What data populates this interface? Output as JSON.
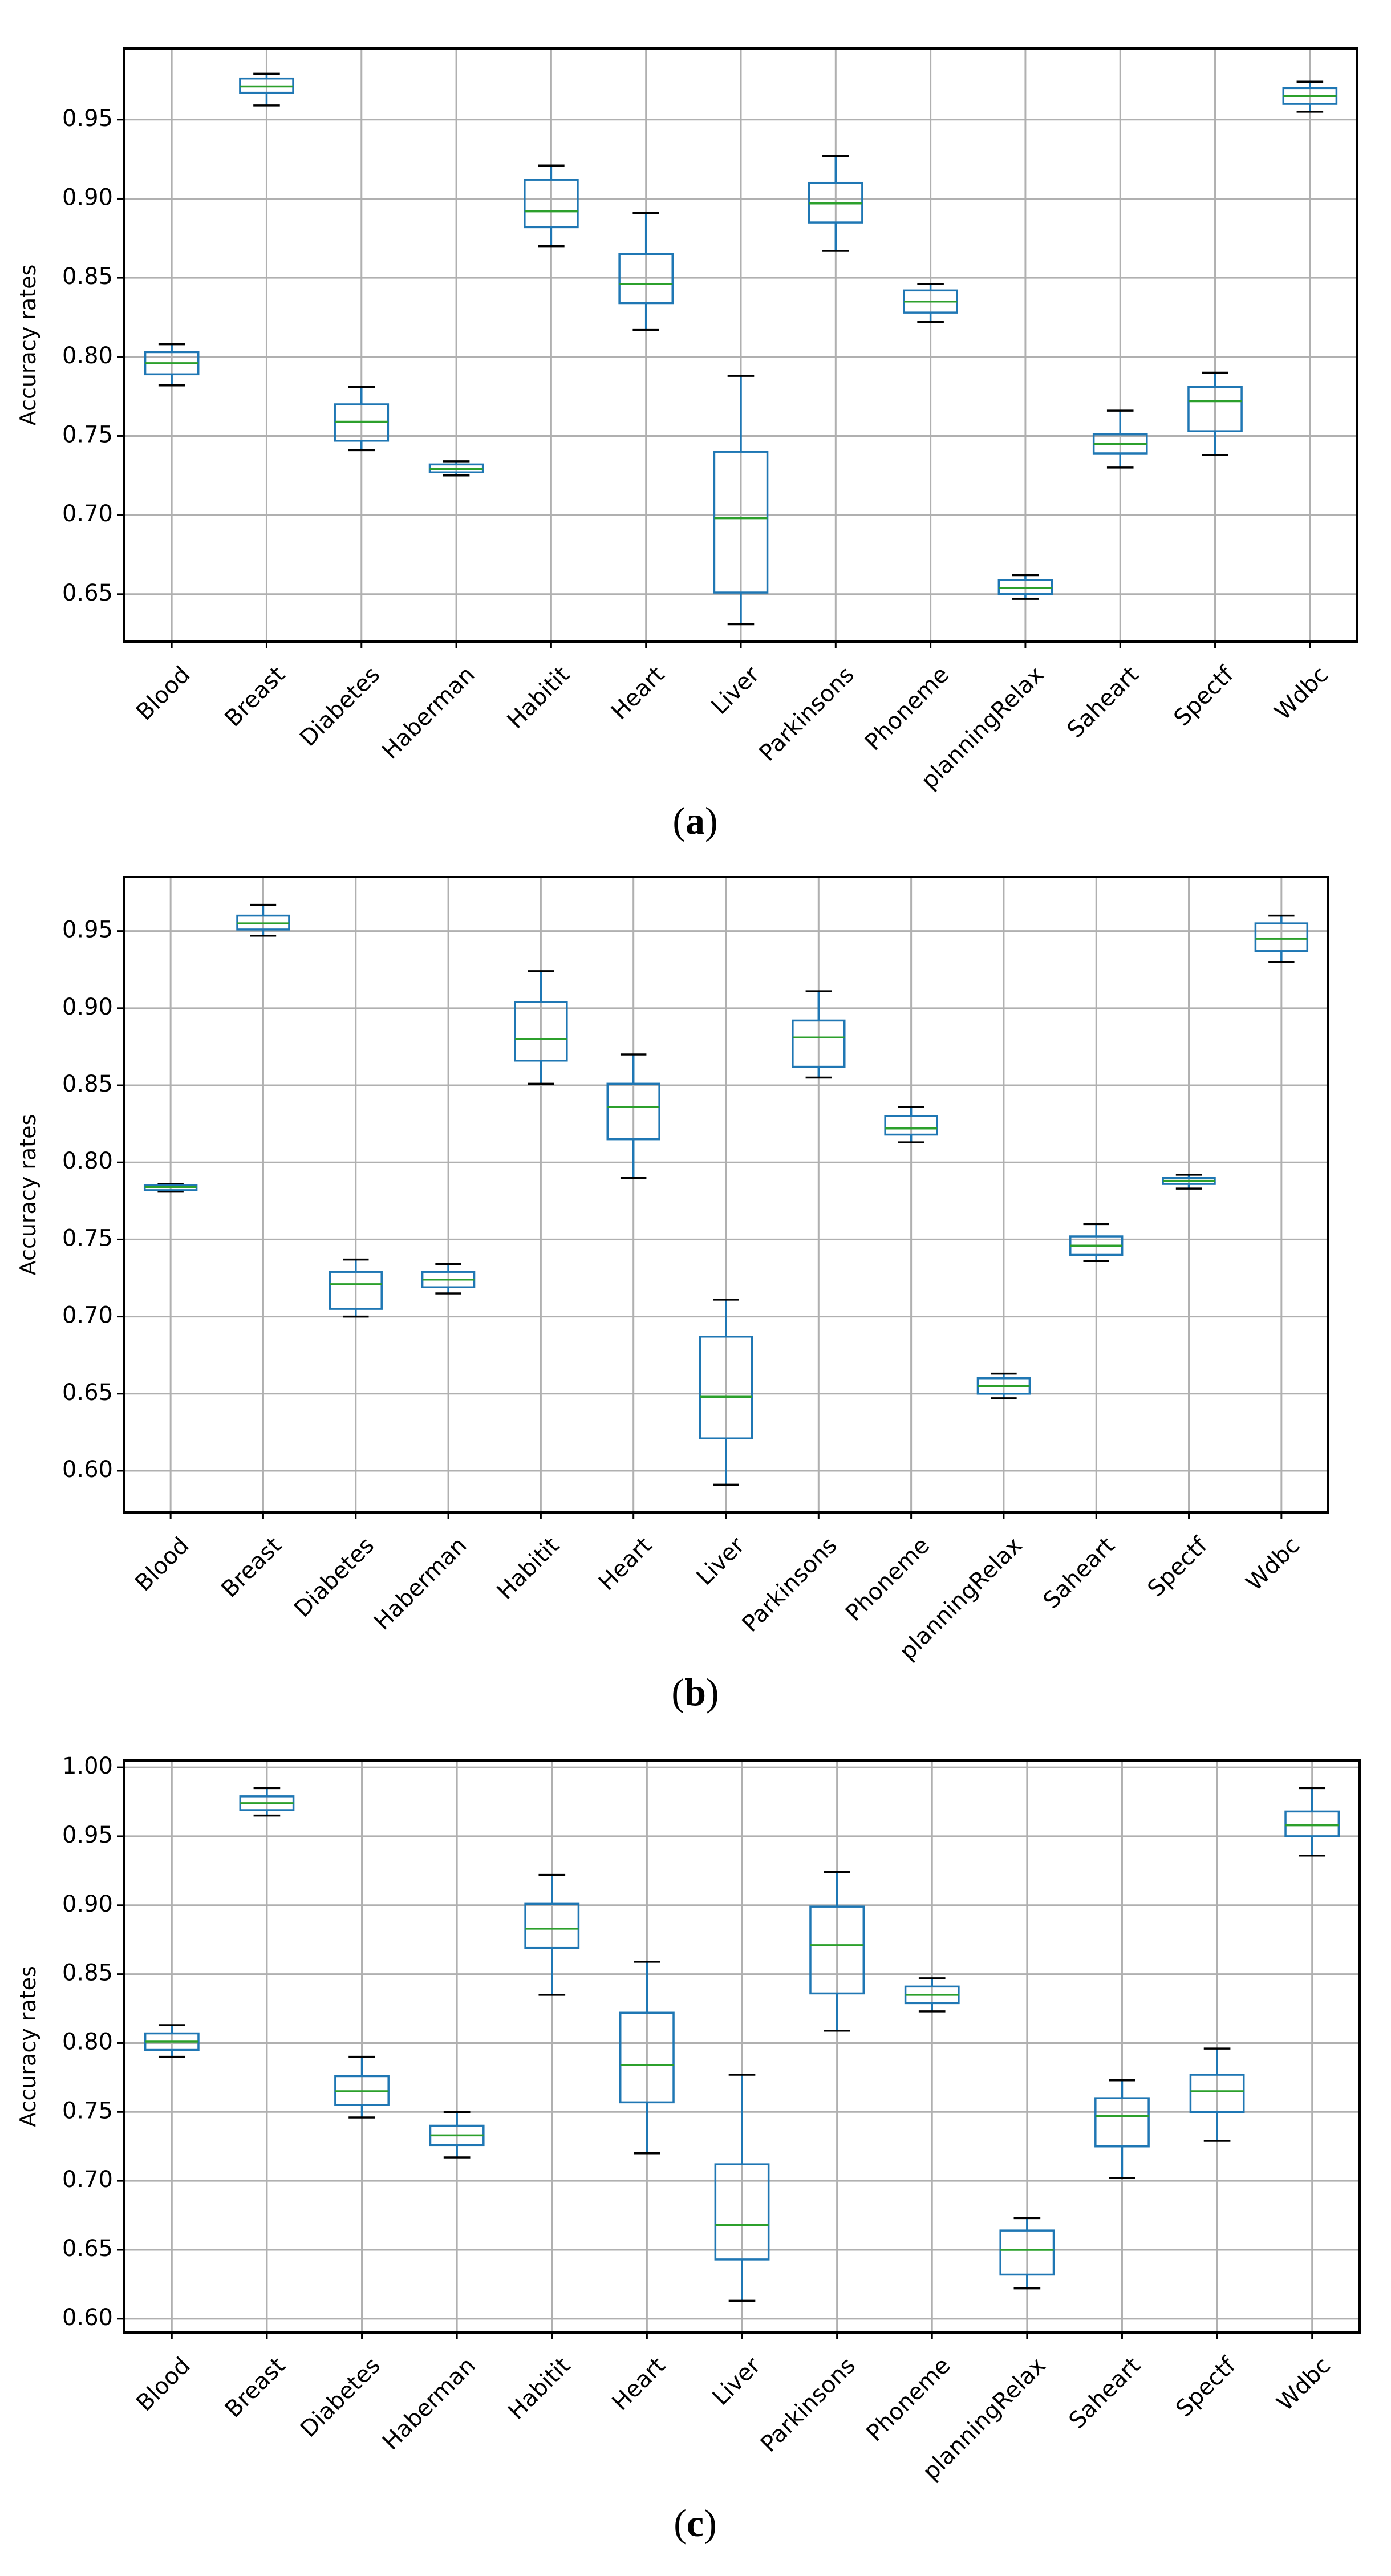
{
  "chart_data": [
    {
      "type": "box",
      "panel": "a",
      "caption": "(a)",
      "ylabel": "Accuracy rates",
      "ylim": [
        0.62,
        0.995
      ],
      "yticks": [
        0.65,
        0.7,
        0.75,
        0.8,
        0.85,
        0.9,
        0.95
      ],
      "ytick_labels": [
        "0.65",
        "0.70",
        "0.75",
        "0.80",
        "0.85",
        "0.90",
        "0.95"
      ],
      "grid": true,
      "categories": [
        "Blood",
        "Breast",
        "Diabetes",
        "Haberman",
        "Habitit",
        "Heart",
        "Liver",
        "Parkinsons",
        "Phoneme",
        "planningRelax",
        "Saheart",
        "Spectf",
        "Wdbc"
      ],
      "boxes": [
        {
          "min": 0.782,
          "q1": 0.789,
          "median": 0.796,
          "q3": 0.803,
          "max": 0.808
        },
        {
          "min": 0.959,
          "q1": 0.967,
          "median": 0.971,
          "q3": 0.976,
          "max": 0.979
        },
        {
          "min": 0.741,
          "q1": 0.747,
          "median": 0.759,
          "q3": 0.77,
          "max": 0.781
        },
        {
          "min": 0.725,
          "q1": 0.727,
          "median": 0.729,
          "q3": 0.732,
          "max": 0.734
        },
        {
          "min": 0.87,
          "q1": 0.882,
          "median": 0.892,
          "q3": 0.912,
          "max": 0.921
        },
        {
          "min": 0.817,
          "q1": 0.834,
          "median": 0.846,
          "q3": 0.865,
          "max": 0.891
        },
        {
          "min": 0.631,
          "q1": 0.651,
          "median": 0.698,
          "q3": 0.74,
          "max": 0.788
        },
        {
          "min": 0.867,
          "q1": 0.885,
          "median": 0.897,
          "q3": 0.91,
          "max": 0.927
        },
        {
          "min": 0.822,
          "q1": 0.828,
          "median": 0.835,
          "q3": 0.842,
          "max": 0.846
        },
        {
          "min": 0.647,
          "q1": 0.65,
          "median": 0.654,
          "q3": 0.659,
          "max": 0.662
        },
        {
          "min": 0.73,
          "q1": 0.739,
          "median": 0.745,
          "q3": 0.751,
          "max": 0.766
        },
        {
          "min": 0.738,
          "q1": 0.753,
          "median": 0.772,
          "q3": 0.781,
          "max": 0.79
        },
        {
          "min": 0.955,
          "q1": 0.96,
          "median": 0.965,
          "q3": 0.97,
          "max": 0.974
        }
      ]
    },
    {
      "type": "box",
      "panel": "b",
      "caption": "(b)",
      "ylabel": "Accuracy rates",
      "ylim": [
        0.573,
        0.985
      ],
      "yticks": [
        0.6,
        0.65,
        0.7,
        0.75,
        0.8,
        0.85,
        0.9,
        0.95
      ],
      "ytick_labels": [
        "0.60",
        "0.65",
        "0.70",
        "0.75",
        "0.80",
        "0.85",
        "0.90",
        "0.95"
      ],
      "grid": true,
      "categories": [
        "Blood",
        "Breast",
        "Diabetes",
        "Haberman",
        "Habitit",
        "Heart",
        "Liver",
        "Parkinsons",
        "Phoneme",
        "planningRelax",
        "Saheart",
        "Spectf",
        "Wdbc"
      ],
      "boxes": [
        {
          "min": 0.781,
          "q1": 0.782,
          "median": 0.784,
          "q3": 0.785,
          "max": 0.786
        },
        {
          "min": 0.947,
          "q1": 0.951,
          "median": 0.955,
          "q3": 0.96,
          "max": 0.967
        },
        {
          "min": 0.7,
          "q1": 0.705,
          "median": 0.721,
          "q3": 0.729,
          "max": 0.737
        },
        {
          "min": 0.715,
          "q1": 0.719,
          "median": 0.724,
          "q3": 0.729,
          "max": 0.734
        },
        {
          "min": 0.851,
          "q1": 0.866,
          "median": 0.88,
          "q3": 0.904,
          "max": 0.924
        },
        {
          "min": 0.79,
          "q1": 0.815,
          "median": 0.836,
          "q3": 0.851,
          "max": 0.87
        },
        {
          "min": 0.591,
          "q1": 0.621,
          "median": 0.648,
          "q3": 0.687,
          "max": 0.711
        },
        {
          "min": 0.855,
          "q1": 0.862,
          "median": 0.881,
          "q3": 0.892,
          "max": 0.911
        },
        {
          "min": 0.813,
          "q1": 0.818,
          "median": 0.822,
          "q3": 0.83,
          "max": 0.836
        },
        {
          "min": 0.647,
          "q1": 0.65,
          "median": 0.655,
          "q3": 0.66,
          "max": 0.663
        },
        {
          "min": 0.736,
          "q1": 0.74,
          "median": 0.746,
          "q3": 0.752,
          "max": 0.76
        },
        {
          "min": 0.783,
          "q1": 0.786,
          "median": 0.788,
          "q3": 0.79,
          "max": 0.792
        },
        {
          "min": 0.93,
          "q1": 0.937,
          "median": 0.945,
          "q3": 0.955,
          "max": 0.96
        }
      ]
    },
    {
      "type": "box",
      "panel": "c",
      "caption": "(c)",
      "ylabel": "Accuracy rates",
      "ylim": [
        0.59,
        1.005
      ],
      "yticks": [
        0.6,
        0.65,
        0.7,
        0.75,
        0.8,
        0.85,
        0.9,
        0.95,
        1.0
      ],
      "ytick_labels": [
        "0.60",
        "0.65",
        "0.70",
        "0.75",
        "0.80",
        "0.85",
        "0.90",
        "0.95",
        "1.00"
      ],
      "grid": true,
      "categories": [
        "Blood",
        "Breast",
        "Diabetes",
        "Haberman",
        "Habitit",
        "Heart",
        "Liver",
        "Parkinsons",
        "Phoneme",
        "planningRelax",
        "Saheart",
        "Spectf",
        "Wdbc"
      ],
      "boxes": [
        {
          "min": 0.79,
          "q1": 0.795,
          "median": 0.801,
          "q3": 0.807,
          "max": 0.813
        },
        {
          "min": 0.965,
          "q1": 0.969,
          "median": 0.974,
          "q3": 0.979,
          "max": 0.985
        },
        {
          "min": 0.746,
          "q1": 0.755,
          "median": 0.765,
          "q3": 0.776,
          "max": 0.79
        },
        {
          "min": 0.717,
          "q1": 0.726,
          "median": 0.733,
          "q3": 0.74,
          "max": 0.75
        },
        {
          "min": 0.835,
          "q1": 0.869,
          "median": 0.883,
          "q3": 0.901,
          "max": 0.922
        },
        {
          "min": 0.72,
          "q1": 0.757,
          "median": 0.784,
          "q3": 0.822,
          "max": 0.859
        },
        {
          "min": 0.613,
          "q1": 0.643,
          "median": 0.668,
          "q3": 0.712,
          "max": 0.777
        },
        {
          "min": 0.809,
          "q1": 0.836,
          "median": 0.871,
          "q3": 0.899,
          "max": 0.924
        },
        {
          "min": 0.823,
          "q1": 0.829,
          "median": 0.835,
          "q3": 0.841,
          "max": 0.847
        },
        {
          "min": 0.622,
          "q1": 0.632,
          "median": 0.65,
          "q3": 0.664,
          "max": 0.673
        },
        {
          "min": 0.702,
          "q1": 0.725,
          "median": 0.747,
          "q3": 0.76,
          "max": 0.773
        },
        {
          "min": 0.729,
          "q1": 0.75,
          "median": 0.765,
          "q3": 0.777,
          "max": 0.796
        },
        {
          "min": 0.936,
          "q1": 0.95,
          "median": 0.958,
          "q3": 0.968,
          "max": 0.985
        }
      ]
    }
  ],
  "colors": {
    "box": "#1f77b4",
    "median": "#2ca02c",
    "whisker_cap": "#000000",
    "grid": "#b0b0b0",
    "axis": "#000000",
    "text": "#000000"
  }
}
